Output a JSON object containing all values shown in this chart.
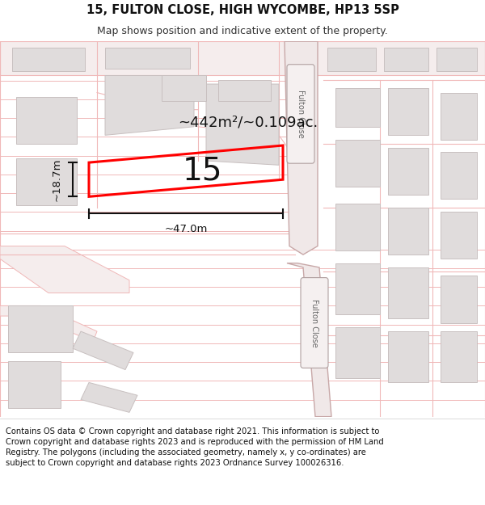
{
  "title_line1": "15, FULTON CLOSE, HIGH WYCOMBE, HP13 5SP",
  "title_line2": "Map shows position and indicative extent of the property.",
  "footer_text": "Contains OS data © Crown copyright and database right 2021. This information is subject to Crown copyright and database rights 2023 and is reproduced with the permission of HM Land Registry. The polygons (including the associated geometry, namely x, y co-ordinates) are subject to Crown copyright and database rights 2023 Ordnance Survey 100026316.",
  "area_label": "~442m²/~0.109ac.",
  "width_label": "~47.0m",
  "height_label": "~18.7m",
  "plot_number": "15",
  "map_bg": "#ffffff",
  "road_line_color": "#f0b8b8",
  "building_fill": "#e0dcdc",
  "building_edge": "#c8c0c0",
  "road_fill": "#f0e4e4",
  "road_edge": "#d4a8a8",
  "fulton_road_fill": "#e8e0e0",
  "fulton_road_edge": "#b8a8a8",
  "plot_color": "#ff0000",
  "dim_color": "#111111",
  "title_fontsize": 10.5,
  "subtitle_fontsize": 9,
  "footer_fontsize": 7.2,
  "area_fontsize": 13,
  "number_fontsize": 28,
  "dim_fontsize": 9.5
}
